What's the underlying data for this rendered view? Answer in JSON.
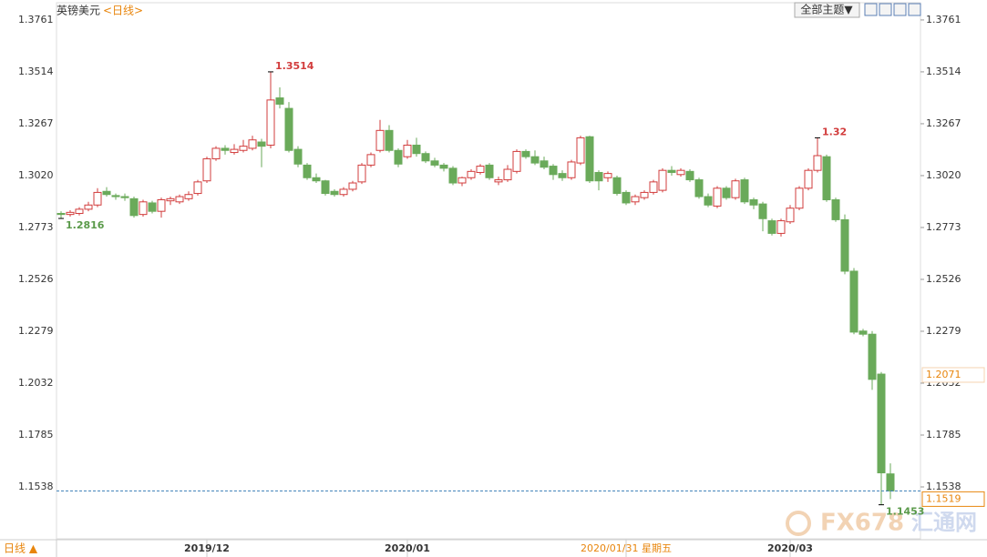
{
  "chart_data": {
    "type": "candlestick",
    "title": "英镑美元",
    "subtitle": "<日线>",
    "period_label": "日线 ▲",
    "theme_button": "全部主题▼",
    "watermark": [
      "FX678",
      "汇通网"
    ],
    "up_color": "#d23c3c",
    "down_color": "#6aaa5a",
    "accent_color": "#e8850c",
    "categories": [
      null,
      null,
      null,
      null,
      null,
      null,
      null,
      null,
      null,
      null,
      null,
      null,
      null,
      null,
      null,
      null,
      "2019/12",
      null,
      null,
      null,
      null,
      null,
      null,
      null,
      null,
      null,
      null,
      null,
      null,
      null,
      null,
      null,
      null,
      null,
      null,
      null,
      null,
      null,
      "2020/01",
      null,
      null,
      null,
      null,
      null,
      null,
      null,
      null,
      null,
      null,
      null,
      null,
      null,
      null,
      null,
      null,
      null,
      null,
      null,
      null,
      null,
      null,
      null,
      "2020/01/31 星期五",
      null,
      null,
      null,
      null,
      null,
      null,
      null,
      null,
      null,
      null,
      null,
      null,
      null,
      null,
      null,
      null,
      null,
      "2020/03",
      null,
      null,
      null,
      null,
      null,
      null,
      null,
      null,
      null,
      null,
      null
    ],
    "cursor_index": 62,
    "cursor_price": 1.2071,
    "last_price": 1.1519,
    "open": [
      1.284,
      1.2835,
      1.284,
      1.286,
      1.288,
      1.2945,
      1.2925,
      1.292,
      1.291,
      1.2835,
      1.289,
      1.285,
      1.29,
      1.2895,
      1.291,
      1.2935,
      1.2995,
      1.31,
      1.315,
      1.313,
      1.314,
      1.315,
      1.318,
      1.3165,
      1.339,
      1.334,
      1.3145,
      1.307,
      1.301,
      1.2995,
      1.2945,
      1.293,
      1.2955,
      1.299,
      1.307,
      1.314,
      1.3235,
      1.314,
      1.311,
      1.3165,
      1.3125,
      1.309,
      1.307,
      1.3055,
      1.2985,
      1.301,
      1.3035,
      1.307,
      1.299,
      1.3,
      1.304,
      1.3135,
      1.311,
      1.309,
      1.3065,
      1.303,
      1.301,
      1.308,
      1.3205,
      1.3035,
      1.301,
      1.301,
      1.294,
      1.2895,
      1.2915,
      1.294,
      1.295,
      1.3045,
      1.3025,
      1.304,
      1.3,
      1.292,
      1.2875,
      1.296,
      1.2915,
      1.3,
      1.2905,
      1.2885,
      1.2805,
      1.2745,
      1.28,
      1.2865,
      1.296,
      1.3045,
      1.311,
      1.2905,
      1.281,
      1.2565,
      1.228,
      1.2265,
      1.2075,
      1.16
    ],
    "high": [
      1.285,
      1.2855,
      1.287,
      1.2895,
      1.296,
      1.2965,
      1.2935,
      1.2935,
      1.292,
      1.2905,
      1.29,
      1.2915,
      1.292,
      1.293,
      1.2945,
      1.3,
      1.311,
      1.316,
      1.3165,
      1.317,
      1.319,
      1.321,
      1.3195,
      1.3514,
      1.344,
      1.337,
      1.316,
      1.308,
      1.303,
      1.3,
      1.2955,
      1.2965,
      1.2995,
      1.308,
      1.313,
      1.3285,
      1.326,
      1.315,
      1.319,
      1.32,
      1.3135,
      1.3105,
      1.308,
      1.3065,
      1.3015,
      1.305,
      1.3075,
      1.308,
      1.3015,
      1.307,
      1.3145,
      1.3145,
      1.314,
      1.311,
      1.3075,
      1.3045,
      1.3095,
      1.321,
      1.321,
      1.3045,
      1.304,
      1.302,
      1.295,
      1.293,
      1.295,
      1.3,
      1.3055,
      1.3065,
      1.3055,
      1.305,
      1.301,
      1.2935,
      1.297,
      1.297,
      1.3005,
      1.301,
      1.2915,
      1.2895,
      1.2815,
      1.2815,
      1.288,
      1.297,
      1.3055,
      1.32,
      1.312,
      1.2915,
      1.2835,
      1.258,
      1.229,
      1.228,
      1.2085,
      1.165
    ],
    "low": [
      1.2816,
      1.2825,
      1.283,
      1.285,
      1.287,
      1.292,
      1.2905,
      1.29,
      1.282,
      1.2825,
      1.284,
      1.282,
      1.288,
      1.2885,
      1.29,
      1.2925,
      1.2985,
      1.309,
      1.312,
      1.312,
      1.313,
      1.314,
      1.306,
      1.315,
      1.334,
      1.313,
      1.306,
      1.3,
      1.2985,
      1.2925,
      1.292,
      1.292,
      1.2945,
      1.298,
      1.306,
      1.313,
      1.313,
      1.306,
      1.31,
      1.311,
      1.308,
      1.306,
      1.304,
      1.2975,
      1.297,
      1.3,
      1.3025,
      1.3,
      1.2975,
      1.299,
      1.303,
      1.31,
      1.307,
      1.305,
      1.3,
      1.2995,
      1.3,
      1.307,
      1.2985,
      1.295,
      1.299,
      1.2925,
      1.288,
      1.288,
      1.2905,
      1.293,
      1.294,
      1.302,
      1.3015,
      1.299,
      1.291,
      1.287,
      1.2865,
      1.2905,
      1.2905,
      1.2885,
      1.286,
      1.2755,
      1.2735,
      1.273,
      1.279,
      1.2855,
      1.295,
      1.3035,
      1.2895,
      1.28,
      1.255,
      1.2265,
      1.2255,
      1.2,
      1.1453,
      1.148
    ],
    "close": [
      1.2835,
      1.2845,
      1.286,
      1.288,
      1.294,
      1.293,
      1.292,
      1.2915,
      1.283,
      1.2895,
      1.285,
      1.2905,
      1.291,
      1.292,
      1.293,
      1.299,
      1.31,
      1.315,
      1.314,
      1.3145,
      1.316,
      1.319,
      1.316,
      1.338,
      1.336,
      1.314,
      1.3075,
      1.301,
      1.2995,
      1.2935,
      1.293,
      1.2955,
      1.2985,
      1.307,
      1.312,
      1.3235,
      1.314,
      1.3075,
      1.3165,
      1.3125,
      1.309,
      1.307,
      1.3055,
      1.2985,
      1.301,
      1.304,
      1.3065,
      1.301,
      1.3,
      1.305,
      1.3135,
      1.311,
      1.308,
      1.306,
      1.3025,
      1.301,
      1.3085,
      1.32,
      1.2995,
      1.2995,
      1.303,
      1.2935,
      1.289,
      1.292,
      1.294,
      1.299,
      1.3045,
      1.3035,
      1.3045,
      1.3,
      1.292,
      1.288,
      1.296,
      1.2915,
      1.2995,
      1.2895,
      1.288,
      1.2815,
      1.2745,
      1.2805,
      1.2865,
      1.296,
      1.3045,
      1.3115,
      1.2905,
      1.281,
      1.2565,
      1.2275,
      1.2265,
      1.205,
      1.1605,
      1.1519
    ],
    "annotations": [
      {
        "index": 23,
        "field": "high",
        "value": 1.3514,
        "color": "#d23c3c"
      },
      {
        "index": 83,
        "field": "high",
        "value": 1.32,
        "color": "#d23c3c"
      },
      {
        "index": 0,
        "field": "low",
        "value": 1.2816,
        "color": "#5a9a4a"
      },
      {
        "index": 90,
        "field": "low",
        "value": 1.1453,
        "color": "#5a9a4a"
      }
    ],
    "ylim": [
      1.1291,
      1.3843
    ],
    "yticks": [
      1.3761,
      1.3514,
      1.3267,
      {
        "value": 1.302,
        "label": "1.3020"
      },
      1.2773,
      1.2526,
      1.2279,
      1.2032,
      1.1785,
      1.1538
    ]
  }
}
